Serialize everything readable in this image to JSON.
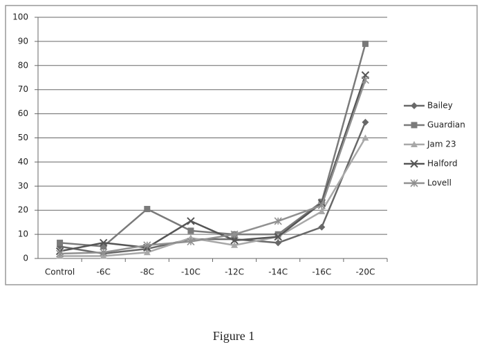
{
  "chart_data": {
    "type": "line",
    "categories": [
      "Control",
      "-6C",
      "-8C",
      "-10C",
      "-12C",
      "-14C",
      "-16C",
      "-20C"
    ],
    "series": [
      {
        "name": "Bailey",
        "color": "#686868",
        "marker": "diamond",
        "values": [
          5,
          2,
          4,
          8,
          8,
          6.5,
          13,
          56.5
        ]
      },
      {
        "name": "Guardian",
        "color": "#7a7a7a",
        "marker": "square",
        "values": [
          6.5,
          5,
          20.5,
          11.5,
          10,
          10,
          23.5,
          89
        ]
      },
      {
        "name": "Jam 23",
        "color": "#a8a8a8",
        "marker": "triangle",
        "values": [
          1,
          1,
          2.5,
          8.5,
          5.5,
          9,
          19.5,
          50
        ]
      },
      {
        "name": "Halford",
        "color": "#555555",
        "marker": "x",
        "values": [
          3,
          6.5,
          4.5,
          15.5,
          7.5,
          9,
          23,
          76
        ]
      },
      {
        "name": "Lovell",
        "color": "#909090",
        "marker": "star",
        "values": [
          2,
          2.5,
          5.5,
          7,
          10,
          15.5,
          22,
          74
        ]
      }
    ],
    "ylim": [
      0,
      100
    ],
    "yticks": [
      0,
      10,
      20,
      30,
      40,
      50,
      60,
      70,
      80,
      90,
      100
    ],
    "grid": true,
    "legend": "right"
  },
  "caption": "Figure 1"
}
